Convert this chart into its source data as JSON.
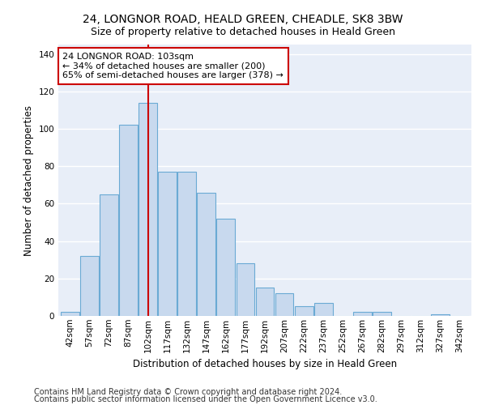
{
  "title1": "24, LONGNOR ROAD, HEALD GREEN, CHEADLE, SK8 3BW",
  "title2": "Size of property relative to detached houses in Heald Green",
  "xlabel": "Distribution of detached houses by size in Heald Green",
  "ylabel": "Number of detached properties",
  "bar_color": "#c8d9ee",
  "bar_edge_color": "#6aaad4",
  "categories": [
    "42sqm",
    "57sqm",
    "72sqm",
    "87sqm",
    "102sqm",
    "117sqm",
    "132sqm",
    "147sqm",
    "162sqm",
    "177sqm",
    "192sqm",
    "207sqm",
    "222sqm",
    "237sqm",
    "252sqm",
    "267sqm",
    "282sqm",
    "297sqm",
    "312sqm",
    "327sqm",
    "342sqm"
  ],
  "values": [
    2,
    32,
    65,
    102,
    114,
    77,
    77,
    66,
    52,
    28,
    15,
    12,
    5,
    7,
    0,
    2,
    2,
    0,
    0,
    1,
    0
  ],
  "vline_x_index": 4,
  "vline_color": "#cc0000",
  "annotation_text": "24 LONGNOR ROAD: 103sqm\n← 34% of detached houses are smaller (200)\n65% of semi-detached houses are larger (378) →",
  "annotation_box_color": "#ffffff",
  "annotation_box_edge": "#cc0000",
  "ylim": [
    0,
    145
  ],
  "yticks": [
    0,
    20,
    40,
    60,
    80,
    100,
    120,
    140
  ],
  "background_color": "#e8eef8",
  "grid_color": "#ffffff",
  "footer1": "Contains HM Land Registry data © Crown copyright and database right 2024.",
  "footer2": "Contains public sector information licensed under the Open Government Licence v3.0.",
  "title_fontsize": 10,
  "subtitle_fontsize": 9,
  "axis_label_fontsize": 8.5,
  "tick_fontsize": 7.5,
  "annotation_fontsize": 8,
  "footer_fontsize": 7
}
